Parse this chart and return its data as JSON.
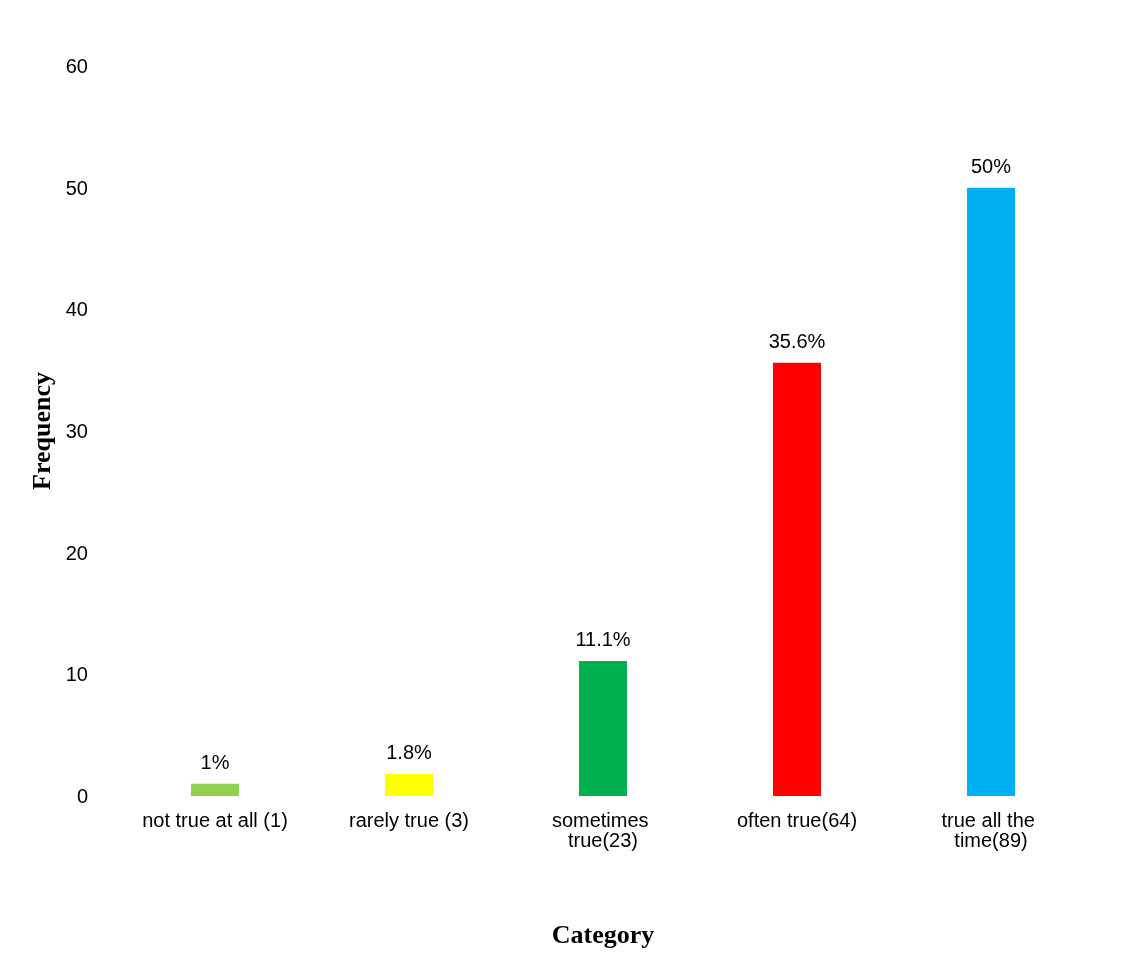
{
  "chart_data": {
    "type": "bar",
    "xlabel": "Category",
    "ylabel": "Frequency",
    "categories": [
      "not true at all (1)",
      "rarely true (3)",
      "sometimes true(23)",
      "often true(64)",
      "true all the time(89)"
    ],
    "values": [
      1,
      1.8,
      11.1,
      35.6,
      50
    ],
    "colors": [
      "#92d050",
      "#ffff00",
      "#00b050",
      "#ff0000",
      "#00b0f0"
    ],
    "value_labels": [
      "1%",
      "1.8%",
      "11.1%",
      "35.6%",
      "50%"
    ],
    "ylim": [
      0,
      60
    ],
    "yticks": [
      0,
      10,
      20,
      30,
      40,
      50,
      60
    ],
    "grid": false
  }
}
